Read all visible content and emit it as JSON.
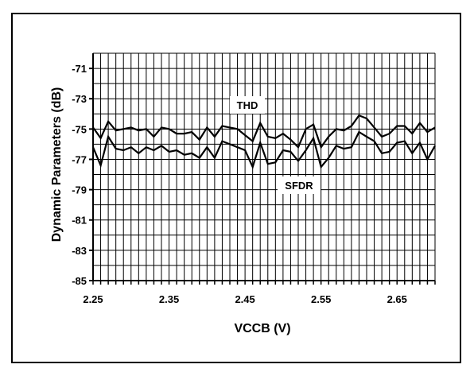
{
  "chart_data": {
    "type": "line",
    "title": "",
    "xlabel": "VCCB (V)",
    "ylabel": "Dynamic Parameters (dB)",
    "xlim": [
      2.25,
      2.7
    ],
    "ylim": [
      -85,
      -70
    ],
    "x_ticks": [
      2.25,
      2.35,
      2.45,
      2.55,
      2.65
    ],
    "x_tick_labels": [
      "2.25",
      "2.35",
      "2.45",
      "2.55",
      "2.65"
    ],
    "y_ticks": [
      -71,
      -73,
      -75,
      -77,
      -79,
      -81,
      -83,
      -85
    ],
    "y_tick_labels": [
      "-71",
      "-73",
      "-75",
      "-77",
      "-79",
      "-81",
      "-83",
      "-85"
    ],
    "grid": true,
    "x": [
      2.25,
      2.26,
      2.27,
      2.28,
      2.29,
      2.3,
      2.31,
      2.32,
      2.33,
      2.34,
      2.35,
      2.36,
      2.37,
      2.38,
      2.39,
      2.4,
      2.41,
      2.42,
      2.43,
      2.44,
      2.45,
      2.46,
      2.47,
      2.48,
      2.49,
      2.5,
      2.51,
      2.52,
      2.53,
      2.54,
      2.55,
      2.56,
      2.57,
      2.58,
      2.59,
      2.6,
      2.61,
      2.62,
      2.63,
      2.64,
      2.65,
      2.66,
      2.67,
      2.68,
      2.69,
      2.7
    ],
    "series": [
      {
        "name": "THD",
        "values": [
          -74.9,
          -75.6,
          -74.5,
          -75.1,
          -75.0,
          -74.9,
          -75.1,
          -75.0,
          -75.5,
          -74.9,
          -75.0,
          -75.3,
          -75.3,
          -75.2,
          -75.7,
          -74.9,
          -75.5,
          -74.8,
          -74.9,
          -75.0,
          -75.4,
          -75.8,
          -74.6,
          -75.5,
          -75.6,
          -75.3,
          -75.7,
          -76.2,
          -75.0,
          -74.7,
          -76.2,
          -75.5,
          -75.0,
          -75.1,
          -74.8,
          -74.1,
          -74.3,
          -74.9,
          -75.5,
          -75.3,
          -74.8,
          -74.8,
          -75.3,
          -74.6,
          -75.2,
          -74.9
        ]
      },
      {
        "name": "SFDR",
        "values": [
          -76.2,
          -77.4,
          -75.5,
          -76.3,
          -76.4,
          -76.2,
          -76.6,
          -76.2,
          -76.4,
          -76.1,
          -76.5,
          -76.4,
          -76.7,
          -76.6,
          -76.9,
          -76.2,
          -76.9,
          -75.8,
          -76.0,
          -76.2,
          -76.4,
          -77.5,
          -75.9,
          -77.3,
          -77.2,
          -76.4,
          -76.5,
          -77.1,
          -76.4,
          -75.6,
          -77.5,
          -76.9,
          -76.1,
          -76.3,
          -76.2,
          -75.2,
          -75.5,
          -75.8,
          -76.6,
          -76.5,
          -75.9,
          -75.8,
          -76.6,
          -75.9,
          -77.0,
          -76.1
        ]
      }
    ]
  }
}
